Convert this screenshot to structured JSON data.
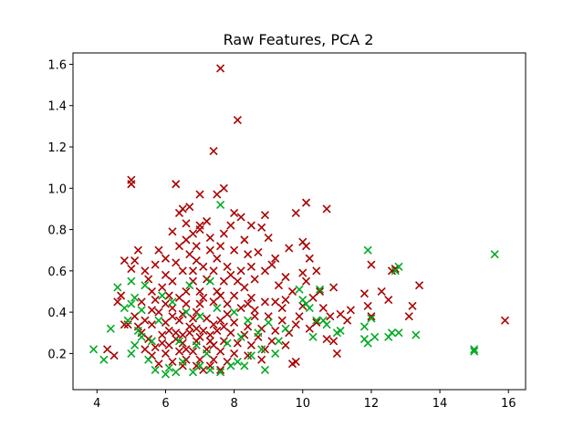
{
  "chart_data": {
    "type": "scatter",
    "title": "Raw Features, PCA 2",
    "xlabel": "",
    "ylabel": "",
    "xlim": [
      3.3,
      16.5
    ],
    "ylim": [
      0.025,
      1.655
    ],
    "xticks": [
      4,
      6,
      8,
      10,
      12,
      14,
      16
    ],
    "xtick_labels": [
      "4",
      "6",
      "8",
      "10",
      "12",
      "14",
      "16"
    ],
    "yticks": [
      0.2,
      0.4,
      0.6,
      0.8,
      1.0,
      1.2,
      1.4,
      1.6
    ],
    "ytick_labels": [
      "0.2",
      "0.4",
      "0.6",
      "0.8",
      "1.0",
      "1.2",
      "1.4",
      "1.6"
    ],
    "grid": false,
    "marker": "x",
    "series": [
      {
        "color": "#aa0000",
        "points": [
          [
            7.6,
            1.58
          ],
          [
            8.1,
            1.33
          ],
          [
            7.4,
            1.18
          ],
          [
            5.0,
            1.04
          ],
          [
            5.0,
            1.02
          ],
          [
            6.3,
            1.02
          ],
          [
            7.7,
            1.0
          ],
          [
            7.0,
            0.97
          ],
          [
            7.5,
            0.97
          ],
          [
            6.5,
            0.9
          ],
          [
            6.7,
            0.91
          ],
          [
            10.1,
            0.93
          ],
          [
            10.7,
            0.9
          ],
          [
            6.4,
            0.88
          ],
          [
            8.0,
            0.88
          ],
          [
            8.9,
            0.87
          ],
          [
            9.8,
            0.88
          ],
          [
            10.0,
            0.74
          ],
          [
            10.1,
            0.72
          ],
          [
            6.2,
            0.79
          ],
          [
            8.2,
            0.86
          ],
          [
            8.5,
            0.82
          ],
          [
            8.8,
            0.81
          ],
          [
            9.0,
            0.76
          ],
          [
            7.2,
            0.84
          ],
          [
            7.9,
            0.82
          ],
          [
            6.6,
            0.83
          ],
          [
            7.0,
            0.8
          ],
          [
            6.8,
            0.78
          ],
          [
            8.3,
            0.75
          ],
          [
            9.6,
            0.71
          ],
          [
            10.2,
            0.66
          ],
          [
            9.2,
            0.66
          ],
          [
            8.7,
            0.69
          ],
          [
            5.2,
            0.7
          ],
          [
            5.8,
            0.7
          ],
          [
            4.8,
            0.65
          ],
          [
            5.1,
            0.65
          ],
          [
            5.7,
            0.63
          ],
          [
            6.0,
            0.66
          ],
          [
            8.5,
            0.62
          ],
          [
            8.9,
            0.6
          ],
          [
            9.1,
            0.63
          ],
          [
            9.5,
            0.57
          ],
          [
            10.0,
            0.59
          ],
          [
            10.4,
            0.6
          ],
          [
            10.1,
            0.55
          ],
          [
            10.9,
            0.52
          ],
          [
            11.1,
            0.39
          ],
          [
            11.4,
            0.41
          ],
          [
            11.8,
            0.49
          ],
          [
            12.0,
            0.63
          ],
          [
            12.3,
            0.5
          ],
          [
            12.6,
            0.6
          ],
          [
            12.7,
            0.61
          ],
          [
            13.4,
            0.53
          ],
          [
            12.5,
            0.46
          ],
          [
            13.2,
            0.43
          ],
          [
            13.1,
            0.38
          ],
          [
            12.0,
            0.38
          ],
          [
            11.9,
            0.43
          ],
          [
            15.9,
            0.36
          ],
          [
            5.0,
            0.61
          ],
          [
            5.4,
            0.6
          ],
          [
            4.6,
            0.45
          ],
          [
            4.7,
            0.48
          ],
          [
            4.8,
            0.34
          ],
          [
            4.9,
            0.34
          ],
          [
            4.3,
            0.22
          ],
          [
            4.5,
            0.19
          ],
          [
            5.6,
            0.5
          ],
          [
            5.5,
            0.56
          ],
          [
            6.0,
            0.58
          ],
          [
            6.9,
            0.65
          ],
          [
            7.3,
            0.7
          ],
          [
            7.6,
            0.72
          ],
          [
            8.0,
            0.7
          ],
          [
            6.4,
            0.72
          ],
          [
            6.7,
            0.68
          ],
          [
            7.1,
            0.62
          ],
          [
            7.8,
            0.62
          ],
          [
            8.4,
            0.68
          ],
          [
            7.4,
            0.6
          ],
          [
            6.5,
            0.6
          ],
          [
            6.2,
            0.55
          ],
          [
            6.8,
            0.55
          ],
          [
            7.2,
            0.56
          ],
          [
            7.7,
            0.55
          ],
          [
            8.1,
            0.55
          ],
          [
            8.6,
            0.56
          ],
          [
            9.3,
            0.53
          ],
          [
            9.7,
            0.5
          ],
          [
            10.3,
            0.47
          ],
          [
            10.6,
            0.42
          ],
          [
            10.8,
            0.38
          ],
          [
            10.4,
            0.35
          ],
          [
            9.9,
            0.38
          ],
          [
            9.4,
            0.42
          ],
          [
            8.9,
            0.45
          ],
          [
            8.5,
            0.47
          ],
          [
            8.0,
            0.48
          ],
          [
            7.5,
            0.5
          ],
          [
            7.0,
            0.5
          ],
          [
            6.6,
            0.5
          ],
          [
            6.1,
            0.48
          ],
          [
            5.7,
            0.46
          ],
          [
            5.3,
            0.45
          ],
          [
            5.1,
            0.38
          ],
          [
            5.4,
            0.36
          ],
          [
            5.8,
            0.4
          ],
          [
            6.2,
            0.42
          ],
          [
            6.6,
            0.44
          ],
          [
            7.0,
            0.44
          ],
          [
            7.4,
            0.45
          ],
          [
            7.8,
            0.44
          ],
          [
            8.2,
            0.42
          ],
          [
            8.6,
            0.41
          ],
          [
            9.0,
            0.38
          ],
          [
            9.4,
            0.36
          ],
          [
            9.8,
            0.34
          ],
          [
            10.2,
            0.32
          ],
          [
            10.7,
            0.27
          ],
          [
            11.0,
            0.2
          ],
          [
            10.9,
            0.26
          ],
          [
            9.6,
            0.3
          ],
          [
            9.2,
            0.31
          ],
          [
            8.8,
            0.32
          ],
          [
            8.4,
            0.33
          ],
          [
            8.0,
            0.35
          ],
          [
            7.6,
            0.36
          ],
          [
            7.2,
            0.37
          ],
          [
            6.8,
            0.37
          ],
          [
            6.4,
            0.36
          ],
          [
            6.0,
            0.35
          ],
          [
            5.6,
            0.34
          ],
          [
            5.3,
            0.3
          ],
          [
            5.5,
            0.27
          ],
          [
            5.9,
            0.29
          ],
          [
            6.3,
            0.3
          ],
          [
            6.7,
            0.3
          ],
          [
            7.1,
            0.31
          ],
          [
            7.5,
            0.31
          ],
          [
            7.9,
            0.3
          ],
          [
            8.3,
            0.29
          ],
          [
            8.7,
            0.28
          ],
          [
            9.1,
            0.26
          ],
          [
            9.5,
            0.24
          ],
          [
            8.9,
            0.22
          ],
          [
            8.5,
            0.24
          ],
          [
            8.1,
            0.25
          ],
          [
            7.7,
            0.26
          ],
          [
            7.3,
            0.26
          ],
          [
            6.9,
            0.26
          ],
          [
            6.5,
            0.25
          ],
          [
            6.1,
            0.24
          ],
          [
            5.7,
            0.23
          ],
          [
            5.4,
            0.22
          ],
          [
            5.6,
            0.19
          ],
          [
            6.0,
            0.2
          ],
          [
            6.4,
            0.21
          ],
          [
            6.8,
            0.21
          ],
          [
            7.2,
            0.22
          ],
          [
            7.6,
            0.21
          ],
          [
            8.0,
            0.2
          ],
          [
            8.4,
            0.19
          ],
          [
            8.8,
            0.17
          ],
          [
            9.7,
            0.15
          ],
          [
            9.8,
            0.16
          ],
          [
            7.8,
            0.16
          ],
          [
            7.4,
            0.17
          ],
          [
            7.0,
            0.17
          ],
          [
            6.6,
            0.17
          ],
          [
            6.2,
            0.16
          ],
          [
            5.8,
            0.15
          ],
          [
            7.1,
            0.12
          ],
          [
            7.6,
            0.12
          ],
          [
            6.5,
            0.14
          ],
          [
            6.9,
            0.14
          ],
          [
            7.3,
            0.14
          ],
          [
            6.3,
            0.27
          ],
          [
            6.7,
            0.33
          ],
          [
            7.0,
            0.28
          ],
          [
            7.4,
            0.34
          ],
          [
            6.9,
            0.4
          ],
          [
            7.1,
            0.47
          ],
          [
            6.5,
            0.39
          ],
          [
            7.8,
            0.39
          ],
          [
            6.8,
            0.6
          ],
          [
            7.5,
            0.66
          ],
          [
            7.9,
            0.58
          ],
          [
            6.3,
            0.64
          ],
          [
            6.9,
            0.72
          ],
          [
            7.3,
            0.76
          ],
          [
            7.7,
            0.78
          ],
          [
            7.0,
            0.82
          ],
          [
            6.6,
            0.75
          ],
          [
            5.9,
            0.52
          ],
          [
            8.3,
            0.52
          ],
          [
            9.2,
            0.45
          ],
          [
            6.1,
            0.31
          ],
          [
            6.5,
            0.29
          ],
          [
            6.9,
            0.32
          ],
          [
            7.3,
            0.29
          ],
          [
            7.7,
            0.33
          ],
          [
            6.2,
            0.38
          ],
          [
            5.9,
            0.25
          ],
          [
            6.6,
            0.22
          ],
          [
            7.4,
            0.24
          ],
          [
            8.6,
            0.38
          ],
          [
            9.5,
            0.46
          ],
          [
            10.5,
            0.5
          ],
          [
            11.3,
            0.36
          ],
          [
            10.0,
            0.43
          ],
          [
            6.4,
            0.47
          ],
          [
            7.6,
            0.48
          ],
          [
            8.2,
            0.6
          ],
          [
            8.4,
            0.44
          ],
          [
            6.0,
            0.44
          ],
          [
            5.2,
            0.33
          ],
          [
            5.6,
            0.41
          ]
        ]
      },
      {
        "color": "#00aa22",
        "points": [
          [
            7.6,
            0.92
          ],
          [
            3.9,
            0.22
          ],
          [
            4.2,
            0.17
          ],
          [
            4.4,
            0.32
          ],
          [
            4.6,
            0.52
          ],
          [
            4.8,
            0.42
          ],
          [
            4.9,
            0.36
          ],
          [
            5.0,
            0.44
          ],
          [
            5.0,
            0.55
          ],
          [
            5.1,
            0.47
          ],
          [
            5.2,
            0.31
          ],
          [
            5.3,
            0.41
          ],
          [
            5.4,
            0.53
          ],
          [
            5.6,
            0.26
          ],
          [
            5.0,
            0.2
          ],
          [
            5.1,
            0.24
          ],
          [
            5.5,
            0.17
          ],
          [
            5.7,
            0.12
          ],
          [
            6.0,
            0.1
          ],
          [
            6.1,
            0.13
          ],
          [
            6.3,
            0.11
          ],
          [
            6.5,
            0.16
          ],
          [
            6.8,
            0.11
          ],
          [
            7.0,
            0.14
          ],
          [
            7.3,
            0.12
          ],
          [
            7.6,
            0.11
          ],
          [
            7.9,
            0.14
          ],
          [
            8.1,
            0.16
          ],
          [
            8.3,
            0.14
          ],
          [
            8.5,
            0.19
          ],
          [
            8.8,
            0.22
          ],
          [
            8.9,
            0.12
          ],
          [
            9.2,
            0.2
          ],
          [
            9.5,
            0.32
          ],
          [
            9.9,
            0.51
          ],
          [
            10.0,
            0.46
          ],
          [
            10.1,
            0.44
          ],
          [
            10.2,
            0.42
          ],
          [
            10.4,
            0.36
          ],
          [
            10.5,
            0.51
          ],
          [
            10.6,
            0.36
          ],
          [
            10.7,
            0.34
          ],
          [
            11.0,
            0.3
          ],
          [
            11.1,
            0.31
          ],
          [
            11.8,
            0.27
          ],
          [
            11.9,
            0.25
          ],
          [
            11.8,
            0.33
          ],
          [
            12.0,
            0.37
          ],
          [
            12.1,
            0.28
          ],
          [
            11.9,
            0.7
          ],
          [
            12.5,
            0.28
          ],
          [
            12.6,
            0.3
          ],
          [
            12.8,
            0.3
          ],
          [
            12.7,
            0.6
          ],
          [
            12.8,
            0.62
          ],
          [
            13.3,
            0.29
          ],
          [
            15.0,
            0.21
          ],
          [
            15.0,
            0.22
          ],
          [
            15.6,
            0.68
          ],
          [
            6.2,
            0.45
          ],
          [
            6.6,
            0.4
          ],
          [
            7.0,
            0.38
          ],
          [
            7.5,
            0.42
          ],
          [
            8.0,
            0.4
          ],
          [
            8.4,
            0.36
          ],
          [
            5.8,
            0.36
          ],
          [
            6.4,
            0.26
          ],
          [
            6.9,
            0.24
          ],
          [
            7.2,
            0.2
          ],
          [
            7.8,
            0.25
          ],
          [
            8.7,
            0.3
          ],
          [
            9.0,
            0.35
          ],
          [
            5.3,
            0.28
          ],
          [
            5.9,
            0.48
          ],
          [
            6.7,
            0.53
          ],
          [
            7.3,
            0.55
          ],
          [
            8.2,
            0.28
          ],
          [
            9.3,
            0.26
          ],
          [
            10.3,
            0.28
          ]
        ]
      }
    ]
  }
}
